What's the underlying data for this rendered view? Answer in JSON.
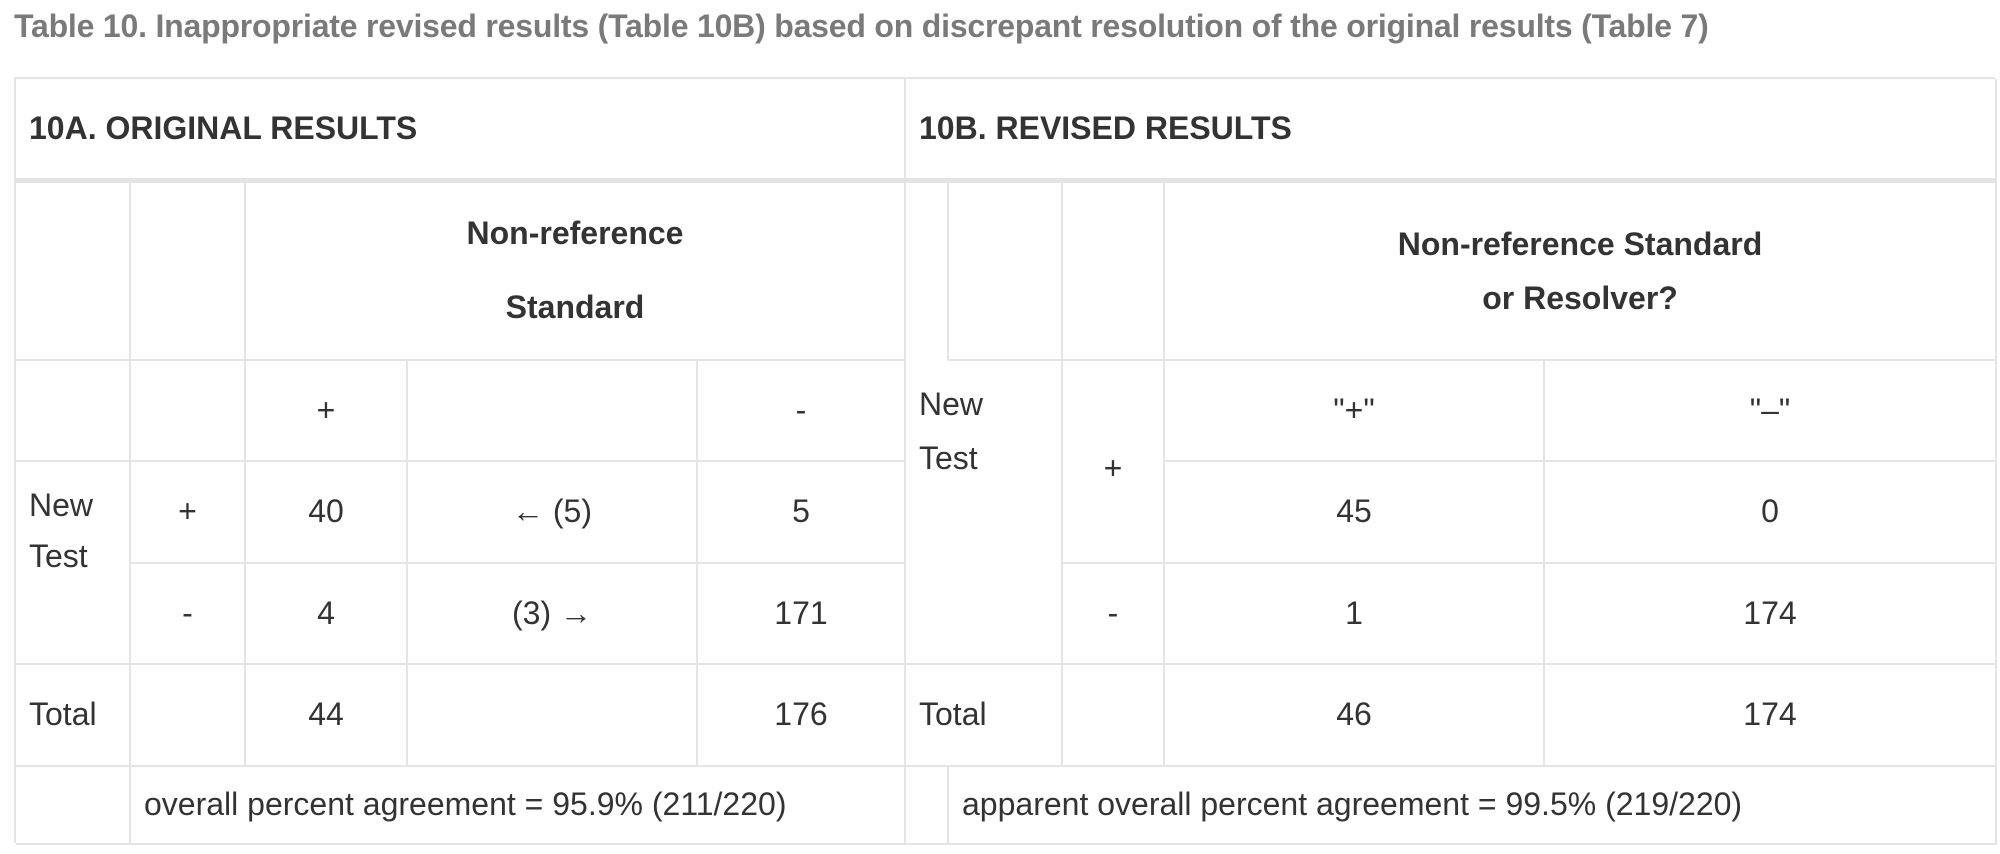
{
  "caption": "Table 10. Inappropriate revised results (Table 10B) based on discrepant resolution of the original results (Table 7)",
  "original": {
    "heading": "10A. ORIGINAL RESULTS",
    "col_header_line1": "Non-reference",
    "col_header_line2": "Standard",
    "col_plus": "+",
    "col_minus": "-",
    "row_label_line1": "New",
    "row_label_line2": "Test",
    "row_plus": "+",
    "row_minus": "-",
    "cell_pp": "40",
    "cell_pm": "5",
    "cell_mp": "4",
    "cell_mm": "171",
    "arrow_top": "← (5)",
    "arrow_bottom": "(3) →",
    "total_label": "Total",
    "total_plus": "44",
    "total_minus": "176",
    "agreement": "overall percent agreement = 95.9% (211/220)"
  },
  "revised": {
    "heading": "10B. REVISED RESULTS",
    "col_header_line1": "Non-reference Standard",
    "col_header_line2": "or Resolver?",
    "col_plus": "\"+\"",
    "col_minus": "\"–\"",
    "row_label_line1": "New",
    "row_label_line2": "Test",
    "row_plus": "+",
    "row_minus": "-",
    "cell_pp": "45",
    "cell_pm": "0",
    "cell_mp": "1",
    "cell_mm": "174",
    "total_label": "Total",
    "total_plus": "46",
    "total_minus": "174",
    "agreement": "apparent overall percent agreement = 99.5% (219/220)"
  }
}
